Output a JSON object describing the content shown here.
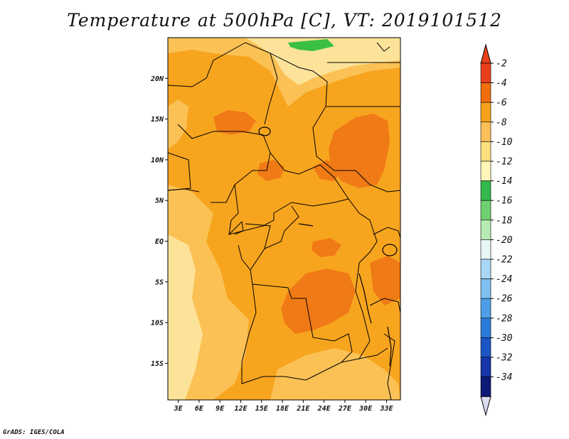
{
  "title": "Temperature at 500hPa [C], VT: 2019101512",
  "credit": "GrADS: IGES/COLA",
  "map": {
    "lat_ticks": [
      "20N",
      "15N",
      "10N",
      "5N",
      "EQ",
      "5S",
      "10S",
      "15S"
    ],
    "lat_values": [
      20,
      15,
      10,
      5,
      0,
      -5,
      -10,
      -15
    ],
    "lon_ticks": [
      "3E",
      "6E",
      "9E",
      "12E",
      "15E",
      "18E",
      "21E",
      "24E",
      "27E",
      "30E",
      "33E"
    ],
    "lon_values": [
      3,
      6,
      9,
      12,
      15,
      18,
      21,
      24,
      27,
      30,
      33
    ],
    "extent": {
      "lon_min": 1.5,
      "lon_max": 35,
      "lat_min": -19.5,
      "lat_max": 25
    }
  },
  "colorbar": {
    "labels": [
      "-2",
      "-4",
      "-6",
      "-8",
      "-10",
      "-12",
      "-14",
      "-16",
      "-18",
      "-20",
      "-22",
      "-24",
      "-26",
      "-28",
      "-30",
      "-32",
      "-34"
    ],
    "colors": [
      "#e8401b",
      "#f06e0c",
      "#f7a21a",
      "#fbc05a",
      "#fbe080",
      "#fff6b8",
      "#34b84c",
      "#6fd06f",
      "#b6eab2",
      "#e6f7f5",
      "#a9d8f7",
      "#7ec0f0",
      "#4e9de6",
      "#2a7ad9",
      "#1b55c4",
      "#1535a8",
      "#0c1a78"
    ],
    "top_arrow_color": "#e8401b",
    "bottom_arrow_color": "#dcdcf2"
  },
  "palette": {
    "deep": "#f07a15",
    "main": "#f7a51e",
    "light": "#fbc155",
    "pale": "#fde39a",
    "green": "#3cc043",
    "border": "#000000"
  }
}
